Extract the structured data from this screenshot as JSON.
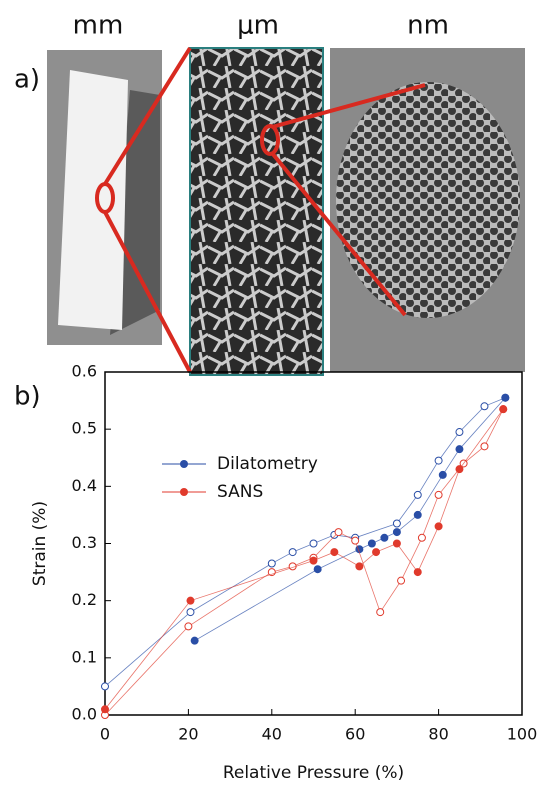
{
  "panel_a": {
    "label": "a)",
    "scales": [
      "mm",
      "μm",
      "nm"
    ]
  },
  "chart_data": {
    "type": "line",
    "panel_label": "b)",
    "x_label": "Relative Pressure (%)",
    "y_label": "Strain (%)",
    "xlim": [
      0,
      100
    ],
    "xticks": [
      0,
      20,
      40,
      60,
      80,
      100
    ],
    "ylim": [
      0,
      0.6
    ],
    "yticks": [
      {
        "value": 0,
        "label": "0.0"
      },
      0.1,
      0.2,
      0.3,
      0.4,
      0.5,
      0.6
    ],
    "legend": "upper left",
    "series": [
      {
        "name": "Dilatometry",
        "color": "#2a4ea6",
        "x": [
          21.5,
          51,
          61,
          64,
          67,
          70,
          75,
          81,
          85,
          96
        ],
        "values": [
          0.13,
          0.255,
          0.29,
          0.3,
          0.31,
          0.32,
          0.35,
          0.42,
          0.465,
          0.555
        ],
        "open_x": [
          0,
          20.5,
          40,
          45,
          50,
          55,
          60,
          70,
          75,
          80,
          85,
          91,
          96
        ],
        "open_values": [
          0.05,
          0.18,
          0.265,
          0.285,
          0.3,
          0.315,
          0.31,
          0.335,
          0.385,
          0.445,
          0.495,
          0.54,
          0.555
        ]
      },
      {
        "name": "SANS",
        "color": "#e03a2c",
        "x": [
          0,
          20.5,
          50,
          55,
          61,
          65,
          70,
          75,
          80,
          85,
          95.5
        ],
        "values": [
          0.01,
          0.2,
          0.27,
          0.285,
          0.26,
          0.285,
          0.3,
          0.25,
          0.33,
          0.43,
          0.535
        ],
        "open_x": [
          0,
          20,
          40,
          45,
          50,
          56,
          60,
          66,
          71,
          76,
          80,
          86,
          91,
          95.5
        ],
        "open_values": [
          0,
          0.155,
          0.25,
          0.26,
          0.275,
          0.32,
          0.305,
          0.18,
          0.235,
          0.31,
          0.385,
          0.44,
          0.47,
          0.535
        ]
      }
    ]
  }
}
